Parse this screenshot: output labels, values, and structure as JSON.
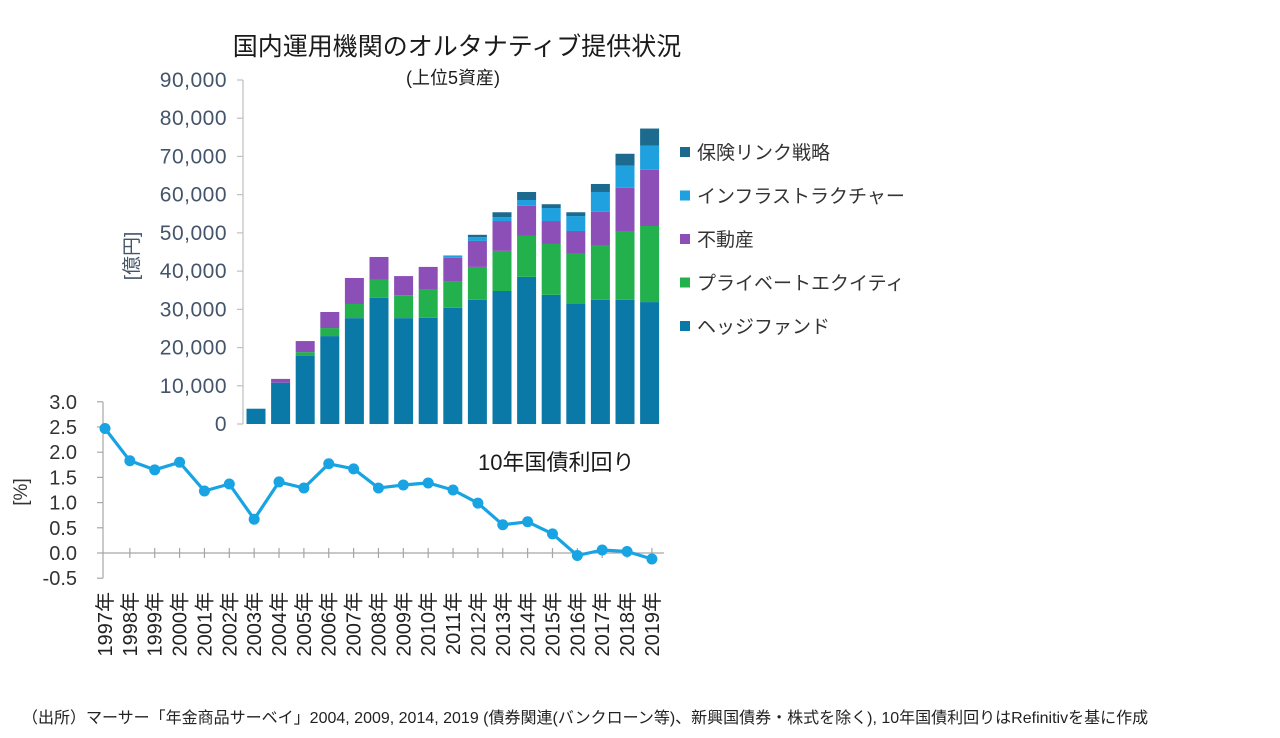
{
  "chart_data": [
    {
      "type": "bar",
      "stacked": true,
      "title": "国内運用機関のオルタナティブ提供状況",
      "subtitle": "(上位5資産)",
      "ylabel": "[億円]",
      "ylim": [
        0,
        90000
      ],
      "yticks": [
        {
          "value": 0,
          "label": "0"
        },
        {
          "value": 10000,
          "label": "10,000"
        },
        {
          "value": 20000,
          "label": "20,000"
        },
        {
          "value": 30000,
          "label": "30,000"
        },
        {
          "value": 40000,
          "label": "40,000"
        },
        {
          "value": 50000,
          "label": "50,000"
        },
        {
          "value": 60000,
          "label": "60,000"
        },
        {
          "value": 70000,
          "label": "70,000"
        },
        {
          "value": 80000,
          "label": "80,000"
        },
        {
          "value": 90000,
          "label": "90,000"
        }
      ],
      "x": [
        2003,
        2004,
        2005,
        2006,
        2007,
        2008,
        2009,
        2010,
        2011,
        2012,
        2013,
        2014,
        2015,
        2016,
        2017,
        2018,
        2019
      ],
      "series": [
        {
          "name": "ヘッジファンド",
          "color": "#0b79a7",
          "values": [
            4000,
            10800,
            17800,
            23000,
            27700,
            33000,
            27700,
            27800,
            30400,
            32500,
            34800,
            38500,
            33800,
            31400,
            32500,
            32500,
            31900
          ]
        },
        {
          "name": "プライベートエクイティ",
          "color": "#22b14c",
          "values": [
            0,
            0,
            1000,
            2100,
            3700,
            4700,
            6000,
            7300,
            6800,
            8600,
            10500,
            10700,
            13300,
            13100,
            14100,
            18000,
            19900
          ]
        },
        {
          "name": "不動産",
          "color": "#8b4fb7",
          "values": [
            0,
            1000,
            2900,
            4200,
            6800,
            6000,
            5000,
            6000,
            6300,
            6800,
            7800,
            7900,
            6000,
            6000,
            8900,
            11300,
            14700
          ]
        },
        {
          "name": "インフラストラクチャー",
          "color": "#1ea1de",
          "values": [
            0,
            0,
            0,
            0,
            0,
            0,
            0,
            0,
            600,
            1000,
            1000,
            1500,
            3400,
            3900,
            5200,
            5800,
            6300
          ]
        },
        {
          "name": "保険リンク戦略",
          "color": "#1c6b8e",
          "values": [
            0,
            0,
            0,
            0,
            0,
            0,
            0,
            0,
            0,
            600,
            1300,
            2100,
            1000,
            1000,
            2100,
            3100,
            4500
          ]
        }
      ],
      "legend_position": "right"
    },
    {
      "type": "line",
      "title": "10年国債利回り",
      "ylabel": "[%]",
      "ylim": [
        -0.5,
        3.0
      ],
      "yticks": [
        {
          "value": 3.0,
          "label": "3.0"
        },
        {
          "value": 2.5,
          "label": "2.5"
        },
        {
          "value": 2.0,
          "label": "2.0"
        },
        {
          "value": 1.5,
          "label": "1.5"
        },
        {
          "value": 1.0,
          "label": "1.0"
        },
        {
          "value": 0.5,
          "label": "0.5"
        },
        {
          "value": 0.0,
          "label": "0.0"
        },
        {
          "value": -0.5,
          "label": "-0.5"
        }
      ],
      "categories": [
        "1997年",
        "1998年",
        "1999年",
        "2000年",
        "2001年",
        "2002年",
        "2003年",
        "2004年",
        "2005年",
        "2006年",
        "2007年",
        "2008年",
        "2009年",
        "2010年",
        "2011年",
        "2012年",
        "2013年",
        "2014年",
        "2015年",
        "2016年",
        "2017年",
        "2018年",
        "2019年"
      ],
      "values": [
        2.47,
        1.83,
        1.65,
        1.8,
        1.23,
        1.37,
        0.67,
        1.41,
        1.29,
        1.77,
        1.67,
        1.29,
        1.35,
        1.39,
        1.25,
        0.99,
        0.56,
        0.62,
        0.38,
        -0.05,
        0.06,
        0.03,
        -0.12
      ],
      "color": "#18a3e2"
    }
  ],
  "source": "（出所）マーサー「年金商品サーベイ」2004, 2009, 2014, 2019 (債券関連(バンクローン等)、新興国債券・株式を除く), 10年国債利回りはRefinitivを基に作成"
}
